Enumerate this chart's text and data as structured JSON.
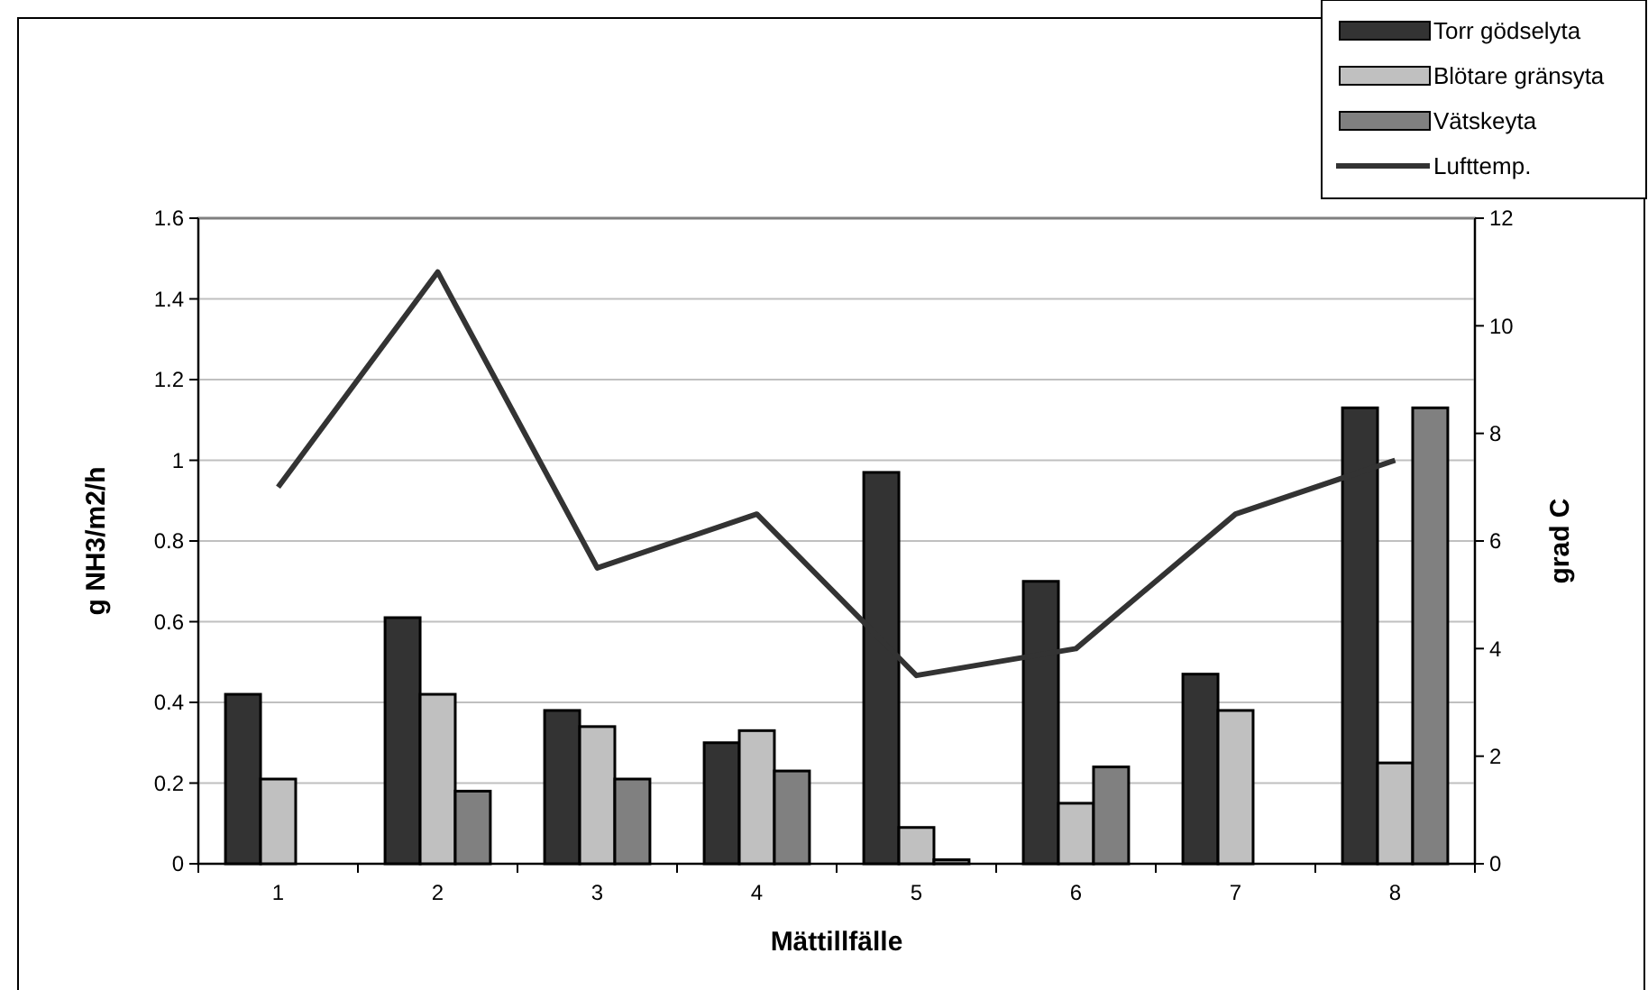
{
  "chart_data": {
    "type": "bar",
    "xlabel": "Mättillfälle",
    "ylabel": "g NH3/m2/h",
    "y2label": "grad C",
    "categories": [
      "1",
      "2",
      "3",
      "4",
      "5",
      "6",
      "7",
      "8"
    ],
    "series": [
      {
        "name": "Torr gödselyta",
        "color": "#333333",
        "values": [
          0.42,
          0.61,
          0.38,
          0.3,
          0.97,
          0.7,
          0.47,
          1.13
        ]
      },
      {
        "name": "Blötare gränsyta",
        "color": "#c0c0c0",
        "values": [
          0.21,
          0.42,
          0.34,
          0.33,
          0.09,
          0.15,
          0.38,
          0.25
        ]
      },
      {
        "name": "Vätskeyta",
        "color": "#808080",
        "values": [
          null,
          0.18,
          0.21,
          0.23,
          0.01,
          0.24,
          null,
          1.13
        ]
      },
      {
        "name": "Lufttemp.",
        "type": "line",
        "axis": "y2",
        "color": "#333333",
        "values": [
          7,
          11,
          5.5,
          6.5,
          3.5,
          4,
          6.5,
          7.5
        ]
      }
    ],
    "ylim": [
      0,
      1.6
    ],
    "yticks": [
      0,
      0.2,
      0.4,
      0.6,
      0.8,
      1,
      1.2,
      1.4,
      1.6
    ],
    "y2lim": [
      0,
      12
    ],
    "y2ticks": [
      0,
      2,
      4,
      6,
      8,
      10,
      12
    ],
    "grid": "y",
    "legend": "top right",
    "marker": "none"
  }
}
